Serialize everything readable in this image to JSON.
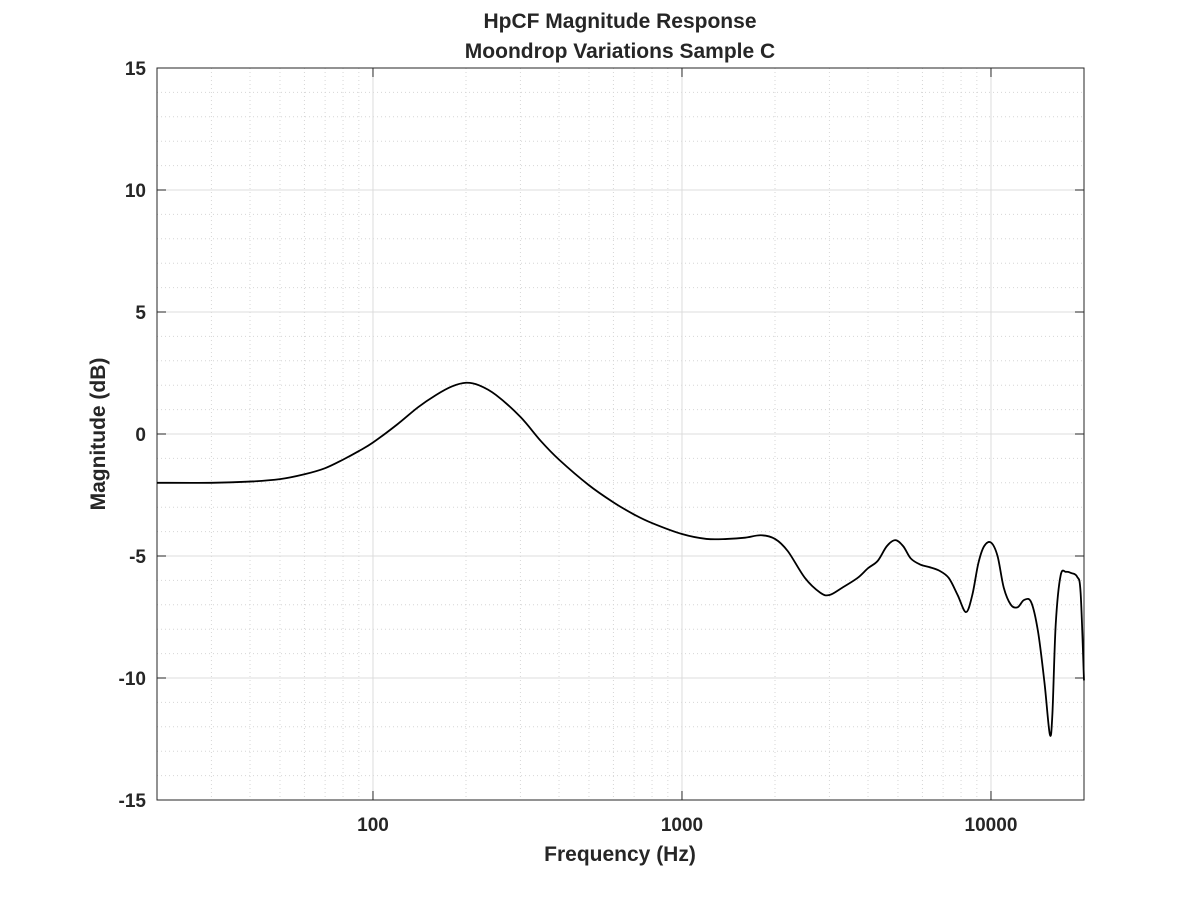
{
  "chart_data": {
    "type": "line",
    "title": [
      "HpCF Magnitude Response",
      "Moondrop Variations  Sample C"
    ],
    "xlabel": "Frequency (Hz)",
    "ylabel": "Magnitude (dB)",
    "xscale": "log",
    "xlim": [
      20,
      20000
    ],
    "ylim": [
      -15,
      15
    ],
    "xticks": [
      100,
      1000,
      10000
    ],
    "xtick_labels": [
      "100",
      "1000",
      "10000"
    ],
    "yticks": [
      -15,
      -10,
      -5,
      0,
      5,
      10,
      15
    ],
    "ytick_labels": [
      "-15",
      "-10",
      "-5",
      "0",
      "5",
      "10",
      "15"
    ],
    "grid": true,
    "minor_grid": true,
    "line_color": "#000000",
    "series": [
      {
        "x": [
          20,
          30,
          40,
          50,
          60,
          70,
          80,
          90,
          100,
          120,
          140,
          160,
          180,
          200,
          220,
          250,
          300,
          350,
          400,
          500,
          600,
          700,
          800,
          1000,
          1200,
          1400,
          1600,
          1800,
          2000,
          2200,
          2500,
          2800,
          3000,
          3300,
          3700,
          4000,
          4300,
          4600,
          4900,
          5200,
          5500,
          5900,
          6300,
          6800,
          7300,
          7800,
          8300,
          8700,
          9100,
          9500,
          10000,
          10500,
          11000,
          11600,
          12200,
          12800,
          13500,
          14200,
          14900,
          15500,
          15800,
          16200,
          16800,
          17500,
          18200,
          19000,
          19500,
          20000
        ],
        "y": [
          -2.0,
          -2.0,
          -1.95,
          -1.85,
          -1.65,
          -1.4,
          -1.05,
          -0.7,
          -0.35,
          0.4,
          1.1,
          1.6,
          1.95,
          2.1,
          2.0,
          1.6,
          0.7,
          -0.3,
          -1.05,
          -2.1,
          -2.8,
          -3.3,
          -3.65,
          -4.1,
          -4.3,
          -4.3,
          -4.25,
          -4.15,
          -4.3,
          -4.8,
          -5.9,
          -6.5,
          -6.6,
          -6.3,
          -5.9,
          -5.5,
          -5.2,
          -4.6,
          -4.35,
          -4.6,
          -5.1,
          -5.35,
          -5.45,
          -5.6,
          -5.9,
          -6.6,
          -7.3,
          -6.6,
          -5.3,
          -4.6,
          -4.45,
          -5.0,
          -6.3,
          -7.0,
          -7.1,
          -6.8,
          -6.9,
          -8.1,
          -10.2,
          -12.3,
          -11.5,
          -7.8,
          -5.8,
          -5.65,
          -5.7,
          -5.85,
          -6.5,
          -10.1
        ]
      }
    ]
  }
}
